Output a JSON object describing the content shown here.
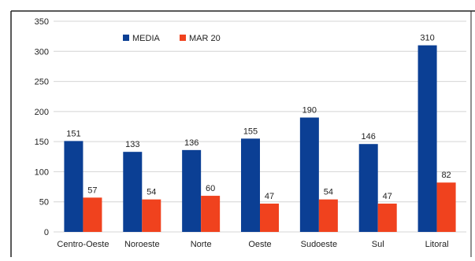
{
  "chart_data": {
    "type": "bar",
    "categories": [
      "Centro-Oeste",
      "Noroeste",
      "Norte",
      "Oeste",
      "Sudoeste",
      "Sul",
      "Litoral"
    ],
    "series": [
      {
        "name": "MEDIA",
        "values": [
          151,
          133,
          136,
          155,
          190,
          146,
          310
        ],
        "color": "#0b3f94"
      },
      {
        "name": "MAR 20",
        "values": [
          57,
          54,
          60,
          47,
          54,
          47,
          82
        ],
        "color": "#f0421e"
      }
    ],
    "y_ticks": [
      "0",
      "50",
      "100",
      "150",
      "200",
      "250",
      "300",
      "350"
    ],
    "ylim": [
      0,
      350
    ],
    "grid": true,
    "legend_position": "top-left",
    "data_labels": true,
    "colors": {
      "grid": "#d4d4d4",
      "axis_text": "#222222",
      "frame": "#222222",
      "background": "#ffffff"
    }
  }
}
